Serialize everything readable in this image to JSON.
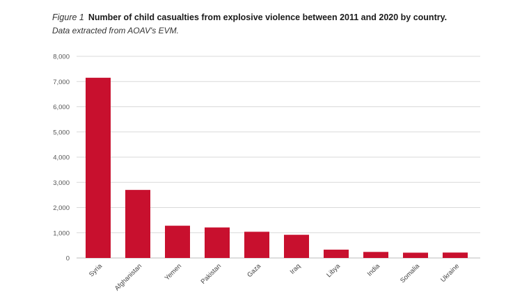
{
  "figure_label": "Figure 1",
  "title": "Number of child casualties from explosive violence between 2011 and 2020 by country.",
  "subtitle": "Data extracted from AOAV's EVM.",
  "chart_data": {
    "type": "bar",
    "title": "Number of child casualties from explosive violence between 2011 and 2020 by country.",
    "subtitle": "Data extracted from AOAV's EVM.",
    "xlabel": "",
    "ylabel": "",
    "categories": [
      "Syria",
      "Afghanistan",
      "Yemen",
      "Pakistan",
      "Gaza",
      "Iraq",
      "Libya",
      "India",
      "Somalia",
      "Ukraine"
    ],
    "values": [
      7150,
      2700,
      1280,
      1210,
      1040,
      920,
      330,
      240,
      210,
      215
    ],
    "ylim": [
      0,
      8000
    ],
    "yticks": [
      0,
      1000,
      2000,
      3000,
      4000,
      5000,
      6000,
      7000,
      8000
    ],
    "ytick_labels": [
      "0",
      "1,000",
      "2,000",
      "3,000",
      "4,000",
      "5,000",
      "6,000",
      "7,000",
      "8,000"
    ],
    "grid": true,
    "bar_color": "#c8102e",
    "grid_color": "#d9d9d9",
    "legend": "none"
  }
}
